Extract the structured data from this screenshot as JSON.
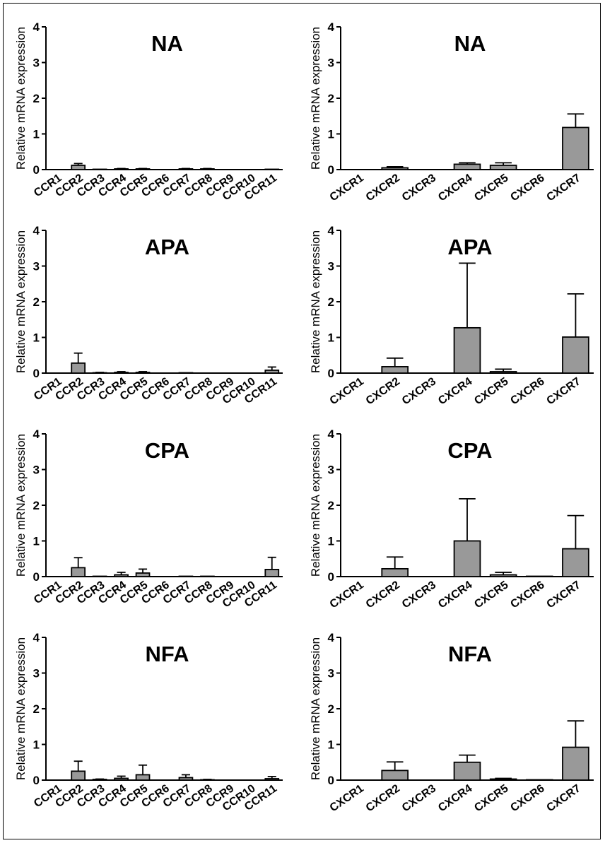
{
  "chart_data": [
    {
      "type": "bar",
      "title": "NA",
      "ylabel": "Relative mRNA expression",
      "ylim": [
        0,
        4
      ],
      "yticks": [
        0,
        1,
        2,
        3,
        4
      ],
      "categories": [
        "CCR1",
        "CCR2",
        "CCR3",
        "CCR4",
        "CCR5",
        "CCR6",
        "CCR7",
        "CCR8",
        "CCR9",
        "CCR10",
        "CCR11"
      ],
      "values": [
        0,
        0.12,
        0.01,
        0.02,
        0.02,
        0,
        0.02,
        0.02,
        0,
        0,
        0.01
      ],
      "errors": [
        0,
        0.05,
        0,
        0.01,
        0.01,
        0,
        0.01,
        0.01,
        0,
        0,
        0
      ],
      "bar_color": "#999999"
    },
    {
      "type": "bar",
      "title": "NA",
      "ylabel": "Relative mRNA expression",
      "ylim": [
        0,
        4
      ],
      "yticks": [
        0,
        1,
        2,
        3,
        4
      ],
      "categories": [
        "CXCR1",
        "CXCR2",
        "CXCR3",
        "CXCR4",
        "CXCR5",
        "CXCR6",
        "CXCR7"
      ],
      "values": [
        0,
        0.05,
        0,
        0.15,
        0.12,
        0,
        1.18
      ],
      "errors": [
        0,
        0.03,
        0,
        0.04,
        0.07,
        0,
        0.38
      ],
      "bar_color": "#999999"
    },
    {
      "type": "bar",
      "title": "APA",
      "ylabel": "Relative mRNA expression",
      "ylim": [
        0,
        4
      ],
      "yticks": [
        0,
        1,
        2,
        3,
        4
      ],
      "categories": [
        "CCR1",
        "CCR2",
        "CCR3",
        "CCR4",
        "CCR5",
        "CCR6",
        "CCR7",
        "CCR8",
        "CCR9",
        "CCR10",
        "CCR11"
      ],
      "values": [
        0,
        0.28,
        0.01,
        0.02,
        0.02,
        0,
        0.01,
        0,
        0,
        0,
        0.08
      ],
      "errors": [
        0,
        0.28,
        0.01,
        0.02,
        0.02,
        0,
        0,
        0,
        0,
        0,
        0.09
      ],
      "bar_color": "#999999"
    },
    {
      "type": "bar",
      "title": "APA",
      "ylabel": "Relative mRNA expression",
      "ylim": [
        0,
        4
      ],
      "yticks": [
        0,
        1,
        2,
        3,
        4
      ],
      "categories": [
        "CXCR1",
        "CXCR2",
        "CXCR3",
        "CXCR4",
        "CXCR5",
        "CXCR6",
        "CXCR7"
      ],
      "values": [
        0,
        0.18,
        0,
        1.27,
        0.04,
        0,
        1.01
      ],
      "errors": [
        0,
        0.24,
        0,
        1.81,
        0.07,
        0,
        1.21
      ],
      "bar_color": "#999999"
    },
    {
      "type": "bar",
      "title": "CPA",
      "ylabel": "Relative mRNA expression",
      "ylim": [
        0,
        4
      ],
      "yticks": [
        0,
        1,
        2,
        3,
        4
      ],
      "categories": [
        "CCR1",
        "CCR2",
        "CCR3",
        "CCR4",
        "CCR5",
        "CCR6",
        "CCR7",
        "CCR8",
        "CCR9",
        "CCR10",
        "CCR11"
      ],
      "values": [
        0,
        0.25,
        0.01,
        0.05,
        0.1,
        0,
        0.01,
        0.01,
        0,
        0,
        0.2
      ],
      "errors": [
        0,
        0.28,
        0,
        0.07,
        0.11,
        0,
        0,
        0,
        0,
        0,
        0.34
      ],
      "bar_color": "#999999"
    },
    {
      "type": "bar",
      "title": "CPA",
      "ylabel": "Relative mRNA expression",
      "ylim": [
        0,
        4
      ],
      "yticks": [
        0,
        1,
        2,
        3,
        4
      ],
      "categories": [
        "CXCR1",
        "CXCR2",
        "CXCR3",
        "CXCR4",
        "CXCR5",
        "CXCR6",
        "CXCR7"
      ],
      "values": [
        0,
        0.22,
        0,
        1.0,
        0.05,
        0.01,
        0.78
      ],
      "errors": [
        0,
        0.33,
        0,
        1.18,
        0.07,
        0,
        0.93
      ],
      "bar_color": "#999999"
    },
    {
      "type": "bar",
      "title": "NFA",
      "ylabel": "Relative mRNA expression",
      "ylim": [
        0,
        4
      ],
      "yticks": [
        0,
        1,
        2,
        3,
        4
      ],
      "categories": [
        "CCR1",
        "CCR2",
        "CCR3",
        "CCR4",
        "CCR5",
        "CCR6",
        "CCR7",
        "CCR8",
        "CCR9",
        "CCR10",
        "CCR11"
      ],
      "values": [
        0,
        0.25,
        0.02,
        0.05,
        0.15,
        0,
        0.07,
        0.01,
        0,
        0,
        0.04
      ],
      "errors": [
        0,
        0.28,
        0.01,
        0.06,
        0.27,
        0,
        0.08,
        0.01,
        0,
        0,
        0.06
      ],
      "bar_color": "#999999"
    },
    {
      "type": "bar",
      "title": "NFA",
      "ylabel": "Relative mRNA expression",
      "ylim": [
        0,
        4
      ],
      "yticks": [
        0,
        1,
        2,
        3,
        4
      ],
      "categories": [
        "CXCR1",
        "CXCR2",
        "CXCR3",
        "CXCR4",
        "CXCR5",
        "CXCR6",
        "CXCR7"
      ],
      "values": [
        0,
        0.27,
        0,
        0.5,
        0.03,
        0.01,
        0.92
      ],
      "errors": [
        0,
        0.24,
        0,
        0.2,
        0.02,
        0,
        0.74
      ],
      "bar_color": "#999999"
    }
  ]
}
